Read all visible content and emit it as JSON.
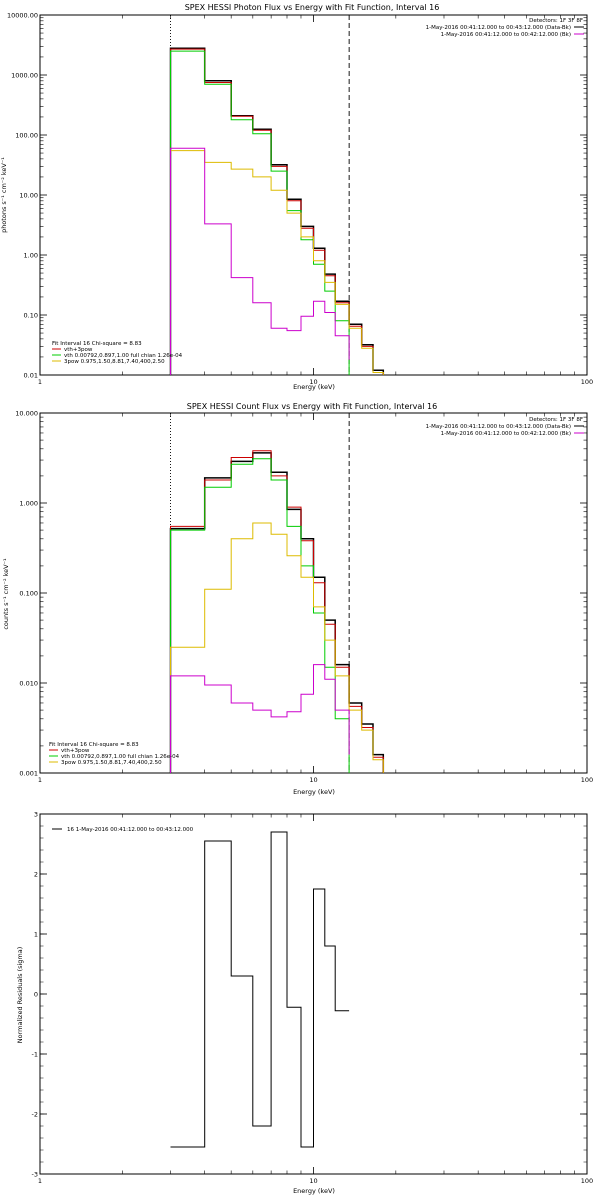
{
  "chart_data": [
    {
      "type": "line",
      "title": "SPEX HESSI Photon Flux vs Energy with Fit Function, Interval 16",
      "xlabel": "Energy (keV)",
      "ylabel": "photons s⁻¹ cm⁻² keV⁻¹",
      "xscale": "log",
      "yscale": "log",
      "xlim": [
        1,
        100
      ],
      "ylim": [
        0.01,
        10000
      ],
      "x_ticks": [
        "1",
        "10",
        "100"
      ],
      "y_ticks": [
        "0.01",
        "0.10",
        "1.00",
        "10.00",
        "100.00",
        "1000.00",
        "10000.00"
      ],
      "y_tick_values": [
        0.01,
        0.1,
        1,
        10,
        100,
        1000,
        10000
      ],
      "vlines": [
        {
          "x": 3.0,
          "style": "dotted"
        },
        {
          "x": 13.5,
          "style": "dashed"
        }
      ],
      "info": {
        "detectors": "Detectors: 1F 3F 8F",
        "lines": [
          {
            "text": "1-May-2016 00:41:12.000 to 00:43:12.000 (Data-Bk)",
            "color": "#000000"
          },
          {
            "text": "1-May-2016 00:41:12.000 to 00:42:12.000 (Bk)",
            "color": "#cc00cc"
          }
        ]
      },
      "legend": {
        "header": "Fit Interval 16   Chi-square = 8.83",
        "entries": [
          {
            "text": "vth+3pow",
            "color": "#cc0000"
          },
          {
            "text": "vth 0.00792,0.897,1.00  full chian 1.26e-04",
            "color": "#00cc00"
          },
          {
            "text": "3pow 0.975,1.50,8.81,7.40,400,2.50",
            "color": "#ddbb00"
          }
        ]
      },
      "series": [
        {
          "style": "data",
          "color": "#000000",
          "edges": [
            3.0,
            4.0,
            5.0,
            6.0,
            7.0,
            8.0,
            9.0,
            10.0,
            11.0,
            12.0,
            13.5,
            15.0,
            16.5,
            18.0
          ],
          "values": [
            2800,
            800,
            210,
            125,
            32,
            8.5,
            3.0,
            1.3,
            0.48,
            0.17,
            0.07,
            0.032,
            0.012
          ]
        },
        {
          "style": "fit",
          "color": "#cc0000",
          "edges": [
            3.0,
            4.0,
            5.0,
            6.0,
            7.0,
            8.0,
            9.0,
            10.0,
            11.0,
            12.0,
            13.5,
            15.0,
            16.5,
            18.0
          ],
          "values": [
            2700,
            750,
            205,
            120,
            30,
            8.0,
            2.8,
            1.2,
            0.45,
            0.16,
            0.065,
            0.03,
            0.011
          ]
        },
        {
          "style": "fit",
          "color": "#00cc00",
          "edges": [
            3.0,
            4.0,
            5.0,
            6.0,
            7.0,
            8.0,
            9.0,
            10.0,
            11.0,
            12.0,
            13.5
          ],
          "values": [
            2500,
            700,
            180,
            105,
            25,
            5.5,
            1.8,
            0.7,
            0.25,
            0.08,
            0.01
          ]
        },
        {
          "style": "fit",
          "color": "#ddbb00",
          "edges": [
            3.0,
            4.0,
            5.0,
            6.0,
            7.0,
            8.0,
            9.0,
            10.0,
            11.0,
            12.0,
            13.5,
            15.0,
            16.5,
            18.0
          ],
          "values": [
            55,
            35,
            27,
            20,
            12,
            5.0,
            2.0,
            0.8,
            0.35,
            0.15,
            0.06,
            0.028,
            0.011
          ]
        },
        {
          "style": "bk",
          "color": "#cc00cc",
          "edges": [
            3.0,
            4.0,
            5.0,
            6.0,
            7.0,
            8.0,
            9.0,
            10.0,
            11.0,
            12.0,
            13.5
          ],
          "values": [
            60,
            3.3,
            0.42,
            0.16,
            0.06,
            0.055,
            0.095,
            0.17,
            0.11,
            0.045,
            0.018
          ]
        }
      ]
    },
    {
      "type": "line",
      "title": "SPEX HESSI Count Flux vs Energy with Fit Function, Interval 16",
      "xlabel": "Energy (keV)",
      "ylabel": "counts s⁻¹ cm⁻² keV⁻¹",
      "xscale": "log",
      "yscale": "log",
      "xlim": [
        1,
        100
      ],
      "ylim": [
        0.001,
        10
      ],
      "x_ticks": [
        "1",
        "10",
        "100"
      ],
      "y_ticks": [
        "0.001",
        "0.010",
        "0.100",
        "1.000",
        "10.000"
      ],
      "y_tick_values": [
        0.001,
        0.01,
        0.1,
        1,
        10
      ],
      "vlines": [
        {
          "x": 3.0,
          "style": "dotted"
        },
        {
          "x": 13.5,
          "style": "dashed"
        }
      ],
      "info": {
        "detectors": "Detectors: 1F 3F 8F",
        "lines": [
          {
            "text": "1-May-2016 00:41:12.000 to 00:43:12.000 (Data-Bk)",
            "color": "#000000"
          },
          {
            "text": "1-May-2016 00:41:12.000 to 00:42:12.000 (Bk)",
            "color": "#cc00cc"
          }
        ]
      },
      "legend": {
        "header": "Fit Interval 16   Chi-square = 8.83",
        "entries": [
          {
            "text": "vth+3pow",
            "color": "#cc0000"
          },
          {
            "text": "vth 0.00792,0.897,1.00  full chian 1.26e-04",
            "color": "#00cc00"
          },
          {
            "text": "3pow 0.975,1.50,8.81,7.40,400,2.50",
            "color": "#ddbb00"
          }
        ]
      },
      "series": [
        {
          "style": "data",
          "color": "#000000",
          "edges": [
            3.0,
            4.0,
            5.0,
            6.0,
            7.0,
            8.0,
            9.0,
            10.0,
            11.0,
            12.0,
            13.5,
            15.0,
            16.5,
            18.0
          ],
          "values": [
            0.52,
            1.9,
            2.9,
            3.6,
            2.2,
            0.85,
            0.4,
            0.15,
            0.05,
            0.016,
            0.006,
            0.0035,
            0.0016
          ]
        },
        {
          "style": "fit",
          "color": "#cc0000",
          "edges": [
            3.0,
            4.0,
            5.0,
            6.0,
            7.0,
            8.0,
            9.0,
            10.0,
            11.0,
            12.0,
            13.5,
            15.0,
            16.5,
            18.0
          ],
          "values": [
            0.55,
            1.8,
            3.2,
            3.8,
            2.0,
            0.9,
            0.38,
            0.13,
            0.045,
            0.015,
            0.0055,
            0.0032,
            0.0015
          ]
        },
        {
          "style": "fit",
          "color": "#00cc00",
          "edges": [
            3.0,
            4.0,
            5.0,
            6.0,
            7.0,
            8.0,
            9.0,
            10.0,
            11.0,
            12.0,
            13.5
          ],
          "values": [
            0.5,
            1.5,
            2.7,
            3.1,
            1.8,
            0.55,
            0.2,
            0.06,
            0.015,
            0.004,
            0.001
          ]
        },
        {
          "style": "fit",
          "color": "#ddbb00",
          "edges": [
            3.0,
            4.0,
            5.0,
            6.0,
            7.0,
            8.0,
            9.0,
            10.0,
            11.0,
            12.0,
            13.5,
            15.0,
            16.5,
            18.0
          ],
          "values": [
            0.025,
            0.11,
            0.4,
            0.6,
            0.45,
            0.26,
            0.15,
            0.07,
            0.03,
            0.012,
            0.005,
            0.003,
            0.0014
          ]
        },
        {
          "style": "bk",
          "color": "#cc00cc",
          "edges": [
            3.0,
            4.0,
            5.0,
            6.0,
            7.0,
            8.0,
            9.0,
            10.0,
            11.0,
            12.0,
            13.5
          ],
          "values": [
            0.012,
            0.0095,
            0.006,
            0.005,
            0.0042,
            0.0048,
            0.0075,
            0.016,
            0.011,
            0.005,
            0.0016
          ]
        }
      ]
    },
    {
      "type": "line",
      "title": "",
      "xlabel": "Energy (keV)",
      "ylabel": "Normalized Residuals (sigma)",
      "xscale": "log",
      "yscale": "linear",
      "xlim": [
        1,
        100
      ],
      "ylim": [
        -3,
        3
      ],
      "x_ticks": [
        "1",
        "10",
        "100"
      ],
      "y_ticks": [
        "-3",
        "-2",
        "-1",
        "0",
        "1",
        "2",
        "3"
      ],
      "y_tick_values": [
        -3,
        -2,
        -1,
        0,
        1,
        2,
        3
      ],
      "legend_entry": "16  1-May-2016 00:41:12.000 to 00:43:12.000",
      "series": [
        {
          "style": "resid",
          "color": "#000000",
          "edges": [
            3.0,
            4.0,
            5.0,
            6.0,
            7.0,
            8.0,
            9.0,
            10.0,
            11.0,
            12.0,
            13.5
          ],
          "values": [
            -2.55,
            2.55,
            0.3,
            -2.2,
            2.7,
            -0.22,
            -2.55,
            1.75,
            0.8,
            -0.28
          ]
        }
      ]
    }
  ]
}
